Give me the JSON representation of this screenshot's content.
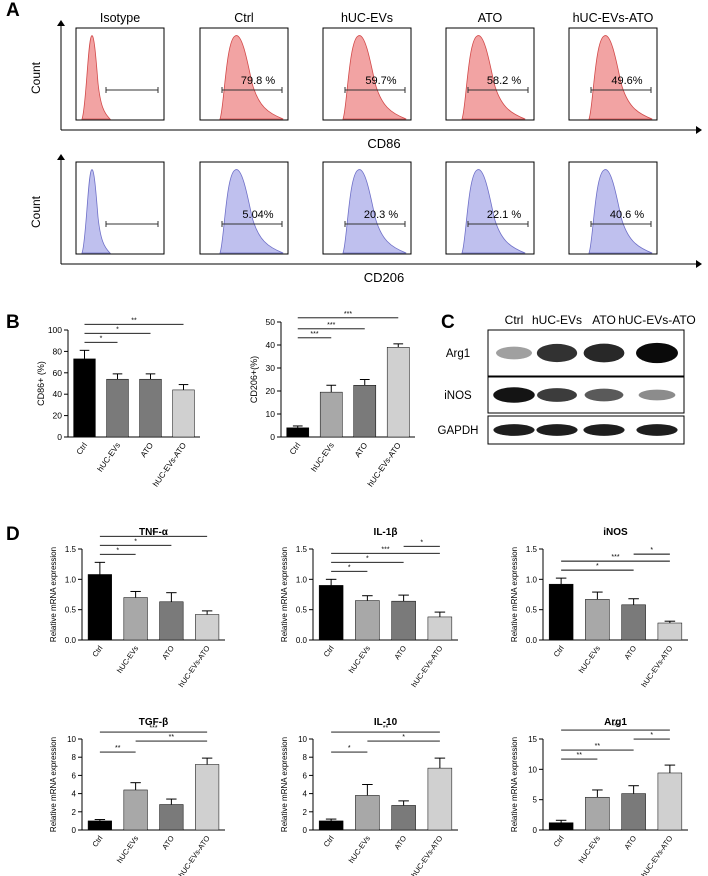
{
  "panel_labels": [
    "A",
    "B",
    "C",
    "D"
  ],
  "flow": {
    "column_titles": [
      "Isotype",
      "Ctrl",
      "hUC-EVs",
      "ATO",
      "hUC-EVs-ATO"
    ],
    "ylabel": "Count",
    "colors": {
      "cd86": "#f2a3a3",
      "cd86_line": "#d24a4a",
      "cd206": "#bfc0ee",
      "cd206_line": "#6f70c8"
    },
    "rows": [
      {
        "marker": "CD86",
        "percents": [
          "",
          "79.8 %",
          "59.7%",
          "58.2 %",
          "49.6%"
        ]
      },
      {
        "marker": "CD206",
        "percents": [
          "",
          "5.04%",
          "20.3 %",
          "22.1 %",
          "40.6 %"
        ]
      }
    ]
  },
  "western": {
    "lanes": [
      "Ctrl",
      "hUC-EVs",
      "ATO",
      "hUC-EVs-ATO"
    ],
    "rows": [
      {
        "label": "Arg1",
        "intensity": [
          0.25,
          0.8,
          0.85,
          1.0
        ]
      },
      {
        "label": "iNOS",
        "intensity": [
          0.95,
          0.75,
          0.6,
          0.35
        ]
      },
      {
        "label": "GAPDH",
        "intensity": [
          0.9,
          0.9,
          0.9,
          0.9
        ]
      }
    ]
  },
  "chart_data": [
    {
      "id": "B1",
      "type": "bar",
      "title": "",
      "ylabel": "CD86+ (%)",
      "xlabel": "",
      "categories": [
        "Ctrl",
        "hUC-EVs",
        "ATO",
        "hUC-EVs-ATO"
      ],
      "values": [
        73,
        54,
        54,
        44
      ],
      "errors": [
        8,
        5,
        5,
        5
      ],
      "ylim": [
        0,
        100
      ],
      "yticks": [
        "0",
        "20",
        "40",
        "60",
        "80",
        "100"
      ],
      "colors": [
        "#000000",
        "#7a7a7a",
        "#7a7a7a",
        "#d0d0d0"
      ],
      "sig": [
        {
          "a": 0,
          "b": 1,
          "label": "*"
        },
        {
          "a": 0,
          "b": 2,
          "label": "*"
        },
        {
          "a": 0,
          "b": 3,
          "label": "**"
        }
      ]
    },
    {
      "id": "B2",
      "type": "bar",
      "title": "",
      "ylabel": "CD206+(%)",
      "xlabel": "",
      "categories": [
        "Ctrl",
        "hUC-EVs",
        "ATO",
        "hUC-EVs-ATO"
      ],
      "values": [
        4,
        19.5,
        22.5,
        39
      ],
      "errors": [
        0.8,
        3,
        2.5,
        1.5
      ],
      "ylim": [
        0,
        50
      ],
      "yticks": [
        "0",
        "10",
        "20",
        "30",
        "40",
        "50"
      ],
      "colors": [
        "#000000",
        "#a8a8a8",
        "#7a7a7a",
        "#d0d0d0"
      ],
      "sig": [
        {
          "a": 0,
          "b": 1,
          "label": "***"
        },
        {
          "a": 0,
          "b": 2,
          "label": "***"
        },
        {
          "a": 0,
          "b": 3,
          "label": "***"
        }
      ]
    },
    {
      "id": "D1",
      "type": "bar",
      "title": "TNF-α",
      "ylabel": "Relative mRNA expression",
      "xlabel": "",
      "categories": [
        "Ctrl",
        "hUC-EVs",
        "ATO",
        "hUC-EVs-ATO"
      ],
      "values": [
        1.08,
        0.7,
        0.63,
        0.42
      ],
      "errors": [
        0.2,
        0.1,
        0.15,
        0.06
      ],
      "ylim": [
        0,
        1.5
      ],
      "yticks": [
        "0.0",
        "0.5",
        "1.0",
        "1.5"
      ],
      "colors": [
        "#000000",
        "#a8a8a8",
        "#7a7a7a",
        "#d0d0d0"
      ],
      "sig": [
        {
          "a": 0,
          "b": 1,
          "label": "*"
        },
        {
          "a": 0,
          "b": 2,
          "label": "*"
        },
        {
          "a": 0,
          "b": 3,
          "label": "*"
        }
      ]
    },
    {
      "id": "D2",
      "type": "bar",
      "title": "IL-1β",
      "ylabel": "Relative mRNA expression",
      "xlabel": "",
      "categories": [
        "Ctrl",
        "hUC-EVs",
        "ATO",
        "hUC-EVs-ATO"
      ],
      "values": [
        0.9,
        0.65,
        0.64,
        0.38
      ],
      "errors": [
        0.1,
        0.08,
        0.1,
        0.08
      ],
      "ylim": [
        0,
        1.5
      ],
      "yticks": [
        "0.0",
        "0.5",
        "1.0",
        "1.5"
      ],
      "colors": [
        "#000000",
        "#a8a8a8",
        "#7a7a7a",
        "#d0d0d0"
      ],
      "sig": [
        {
          "a": 0,
          "b": 1,
          "label": "*"
        },
        {
          "a": 0,
          "b": 2,
          "label": "*"
        },
        {
          "a": 0,
          "b": 3,
          "label": "***"
        },
        {
          "a": 2,
          "b": 3,
          "label": "*"
        }
      ]
    },
    {
      "id": "D3",
      "type": "bar",
      "title": "iNOS",
      "ylabel": "Relative mRNA expression",
      "xlabel": "",
      "categories": [
        "Ctrl",
        "hUC-EVs",
        "ATO",
        "hUC-EVs-ATO"
      ],
      "values": [
        0.92,
        0.67,
        0.58,
        0.28
      ],
      "errors": [
        0.1,
        0.12,
        0.1,
        0.03
      ],
      "ylim": [
        0,
        1.5
      ],
      "yticks": [
        "0.0",
        "0.5",
        "1.0",
        "1.5"
      ],
      "colors": [
        "#000000",
        "#a8a8a8",
        "#7a7a7a",
        "#d0d0d0"
      ],
      "sig": [
        {
          "a": 0,
          "b": 2,
          "label": "*"
        },
        {
          "a": 0,
          "b": 3,
          "label": "***"
        },
        {
          "a": 2,
          "b": 3,
          "label": "*"
        }
      ]
    },
    {
      "id": "D4",
      "type": "bar",
      "title": "TGF-β",
      "ylabel": "Relative mRNA expression",
      "xlabel": "",
      "categories": [
        "Ctrl",
        "hUC-EVs",
        "ATO",
        "hUC-EVs-ATO"
      ],
      "values": [
        1.0,
        4.4,
        2.8,
        7.2
      ],
      "errors": [
        0.15,
        0.8,
        0.6,
        0.7
      ],
      "ylim": [
        0,
        10
      ],
      "yticks": [
        "0",
        "2",
        "4",
        "6",
        "8",
        "10"
      ],
      "colors": [
        "#000000",
        "#a8a8a8",
        "#7a7a7a",
        "#d0d0d0"
      ],
      "sig": [
        {
          "a": 0,
          "b": 1,
          "label": "**"
        },
        {
          "a": 1,
          "b": 3,
          "label": "**"
        },
        {
          "a": 0,
          "b": 3,
          "label": "***"
        }
      ]
    },
    {
      "id": "D5",
      "type": "bar",
      "title": "IL-10",
      "ylabel": "Relative mRNA expression",
      "xlabel": "",
      "categories": [
        "Ctrl",
        "hUC-EVs",
        "ATO",
        "hUC-EVs-ATO"
      ],
      "values": [
        1.0,
        3.8,
        2.7,
        6.8
      ],
      "errors": [
        0.2,
        1.2,
        0.5,
        1.1
      ],
      "ylim": [
        0,
        10
      ],
      "yticks": [
        "0",
        "2",
        "4",
        "6",
        "8",
        "10"
      ],
      "colors": [
        "#000000",
        "#a8a8a8",
        "#7a7a7a",
        "#d0d0d0"
      ],
      "sig": [
        {
          "a": 0,
          "b": 1,
          "label": "*"
        },
        {
          "a": 1,
          "b": 3,
          "label": "*"
        },
        {
          "a": 0,
          "b": 3,
          "label": "**"
        }
      ]
    },
    {
      "id": "D6",
      "type": "bar",
      "title": "Arg1",
      "ylabel": "Relative mRNA expression",
      "xlabel": "",
      "categories": [
        "Ctrl",
        "hUC-EVs",
        "ATO",
        "hUC-EVs-ATO"
      ],
      "values": [
        1.2,
        5.4,
        6.0,
        9.4
      ],
      "errors": [
        0.4,
        1.2,
        1.3,
        1.3
      ],
      "ylim": [
        0,
        15
      ],
      "yticks": [
        "0",
        "5",
        "10",
        "15"
      ],
      "colors": [
        "#000000",
        "#a8a8a8",
        "#7a7a7a",
        "#d0d0d0"
      ],
      "sig": [
        {
          "a": 0,
          "b": 1,
          "label": "**"
        },
        {
          "a": 0,
          "b": 2,
          "label": "**"
        },
        {
          "a": 2,
          "b": 3,
          "label": "*"
        },
        {
          "a": 0,
          "b": 3,
          "label": "***"
        }
      ]
    }
  ]
}
